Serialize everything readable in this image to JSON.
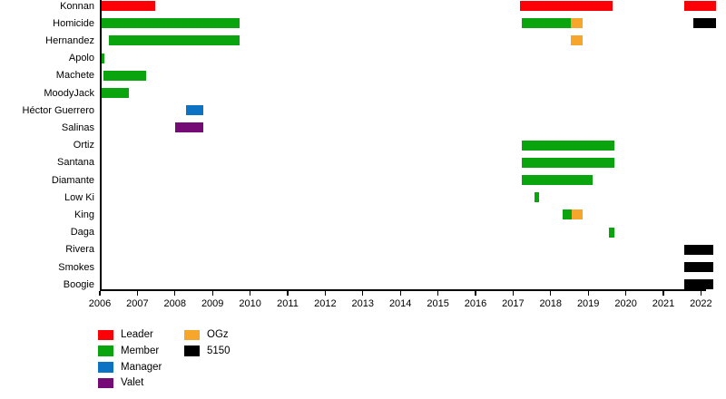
{
  "chart_data": {
    "type": "bar",
    "subtype": "gantt-timeline",
    "title": "",
    "xlabel": "",
    "ylabel": "",
    "grid": false,
    "x_axis": {
      "min": 2006,
      "max": 2022.45,
      "ticks": [
        2006,
        2007,
        2008,
        2009,
        2010,
        2011,
        2012,
        2013,
        2014,
        2015,
        2016,
        2017,
        2018,
        2019,
        2020,
        2021,
        2022
      ]
    },
    "roles": {
      "Leader": "#fb0007",
      "Member": "#0aa40f",
      "Manager": "#0b72c4",
      "Valet": "#750c75",
      "OGz": "#f7a62c",
      "5150": "#000000"
    },
    "legend": {
      "position": "bottom-left",
      "items": [
        {
          "label": "Leader",
          "color": "#fb0007"
        },
        {
          "label": "Member",
          "color": "#0aa40f"
        },
        {
          "label": "Manager",
          "color": "#0b72c4"
        },
        {
          "label": "Valet",
          "color": "#750c75"
        },
        {
          "label": "OGz",
          "color": "#f7a62c"
        },
        {
          "label": "5150",
          "color": "#000000"
        }
      ]
    },
    "rows": [
      {
        "label": "Konnan",
        "segments": [
          {
            "role": "Leader",
            "start": 2006.0,
            "end": 2007.47
          },
          {
            "role": "Leader",
            "start": 2017.18,
            "end": 2019.64
          },
          {
            "role": "Leader",
            "start": 2021.55,
            "end": 2022.4
          }
        ]
      },
      {
        "label": "Homicide",
        "segments": [
          {
            "role": "Member",
            "start": 2006.02,
            "end": 2009.72
          },
          {
            "role": "Member",
            "start": 2017.23,
            "end": 2018.53
          },
          {
            "role": "OGz",
            "start": 2018.53,
            "end": 2018.85
          },
          {
            "role": "5150",
            "start": 2021.8,
            "end": 2022.4
          }
        ]
      },
      {
        "label": "Hernandez",
        "segments": [
          {
            "role": "Member",
            "start": 2006.25,
            "end": 2009.72
          },
          {
            "role": "OGz",
            "start": 2018.53,
            "end": 2018.85
          }
        ]
      },
      {
        "label": "Apolo",
        "segments": [
          {
            "role": "Member",
            "start": 2006.0,
            "end": 2006.13
          }
        ]
      },
      {
        "label": "Machete",
        "segments": [
          {
            "role": "Member",
            "start": 2006.1,
            "end": 2007.23
          }
        ]
      },
      {
        "label": "MoodyJack",
        "segments": [
          {
            "role": "Member",
            "start": 2006.0,
            "end": 2006.78
          }
        ]
      },
      {
        "label": "Héctor Guerrero",
        "segments": [
          {
            "role": "Manager",
            "start": 2008.3,
            "end": 2008.75
          }
        ]
      },
      {
        "label": "Salinas",
        "segments": [
          {
            "role": "Valet",
            "start": 2008.0,
            "end": 2008.75
          }
        ]
      },
      {
        "label": "Ortiz",
        "segments": [
          {
            "role": "Member",
            "start": 2017.23,
            "end": 2019.69
          }
        ]
      },
      {
        "label": "Santana",
        "segments": [
          {
            "role": "Member",
            "start": 2017.23,
            "end": 2019.69
          }
        ]
      },
      {
        "label": "Diamante",
        "segments": [
          {
            "role": "Member",
            "start": 2017.23,
            "end": 2019.12
          }
        ]
      },
      {
        "label": "Low Ki",
        "segments": [
          {
            "role": "Member",
            "start": 2017.57,
            "end": 2017.68
          }
        ]
      },
      {
        "label": "King",
        "segments": [
          {
            "role": "Member",
            "start": 2018.31,
            "end": 2018.55
          },
          {
            "role": "OGz",
            "start": 2018.55,
            "end": 2018.84
          }
        ]
      },
      {
        "label": "Daga",
        "segments": [
          {
            "role": "Member",
            "start": 2019.55,
            "end": 2019.69
          }
        ]
      },
      {
        "label": "Rivera",
        "segments": [
          {
            "role": "5150",
            "start": 2021.55,
            "end": 2022.32
          }
        ]
      },
      {
        "label": "Smokes",
        "segments": [
          {
            "role": "5150",
            "start": 2021.55,
            "end": 2022.32
          }
        ]
      },
      {
        "label": "Boogie",
        "segments": [
          {
            "role": "5150",
            "start": 2021.55,
            "end": 2022.32
          }
        ]
      }
    ]
  }
}
